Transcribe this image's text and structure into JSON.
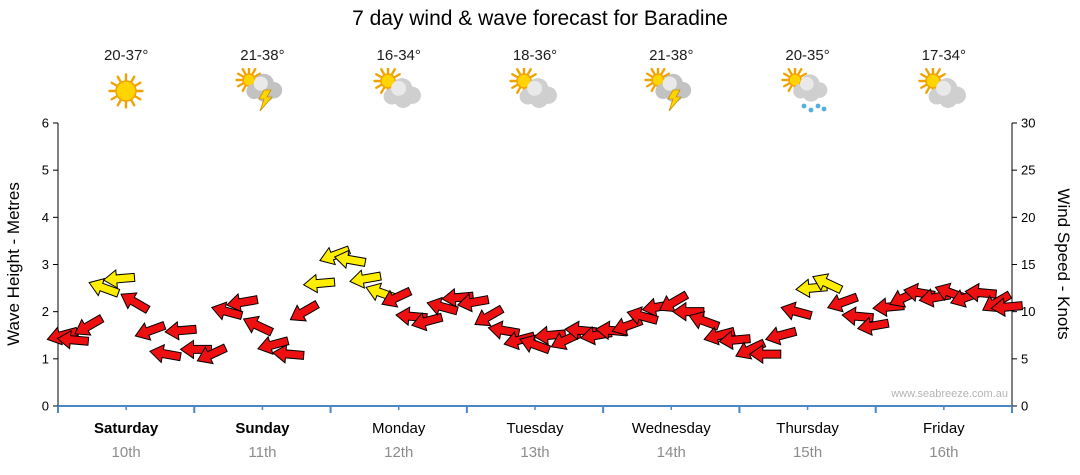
{
  "chart_data": {
    "type": "wind-arrow-timeseries",
    "title": "7 day wind & wave forecast for Baradine",
    "y_left": {
      "label": "Wave Height - Metres",
      "min": 0,
      "max": 6,
      "ticks": [
        0,
        1,
        2,
        3,
        4,
        5,
        6
      ]
    },
    "y_right": {
      "label": "Wind Speed - Knots",
      "min": 0,
      "max": 30,
      "ticks": [
        0,
        5,
        10,
        15,
        20,
        25,
        30
      ]
    },
    "grid": false,
    "legend": "none",
    "days": [
      {
        "name": "Saturday",
        "date": "10th",
        "temp": "20-37°",
        "icon": "sunny",
        "bold": true
      },
      {
        "name": "Sunday",
        "date": "11th",
        "temp": "21-38°",
        "icon": "thunderstorm",
        "bold": true
      },
      {
        "name": "Monday",
        "date": "12th",
        "temp": "16-34°",
        "icon": "partly-cloudy",
        "bold": false
      },
      {
        "name": "Tuesday",
        "date": "13th",
        "temp": "18-36°",
        "icon": "partly-cloudy",
        "bold": false
      },
      {
        "name": "Wednesday",
        "date": "14th",
        "temp": "21-38°",
        "icon": "thunderstorm",
        "bold": false
      },
      {
        "name": "Thursday",
        "date": "15th",
        "temp": "20-35°",
        "icon": "rain-showers",
        "bold": false
      },
      {
        "name": "Friday",
        "date": "16th",
        "temp": "17-34°",
        "icon": "partly-cloudy",
        "bold": false
      }
    ],
    "wind_points_format": [
      "t_fraction_of_week",
      "knots",
      "direction_deg",
      "color r|y"
    ],
    "wind_points": [
      [
        0.005,
        7.5,
        165,
        "r"
      ],
      [
        0.0161,
        7,
        185,
        "r"
      ],
      [
        0.0323,
        8.5,
        150,
        "r"
      ],
      [
        0.0484,
        12.5,
        200,
        "y"
      ],
      [
        0.0645,
        13.5,
        175,
        "y"
      ],
      [
        0.0806,
        11,
        210,
        "r"
      ],
      [
        0.0968,
        8,
        160,
        "r"
      ],
      [
        0.1129,
        5.5,
        190,
        "r"
      ],
      [
        0.129,
        8,
        175,
        "r"
      ],
      [
        0.1452,
        6,
        180,
        "r"
      ],
      [
        0.1613,
        5.5,
        155,
        "r"
      ],
      [
        0.1774,
        10,
        195,
        "r"
      ],
      [
        0.1935,
        11,
        170,
        "r"
      ],
      [
        0.2097,
        8.5,
        205,
        "r"
      ],
      [
        0.2258,
        6.5,
        165,
        "r"
      ],
      [
        0.2419,
        5.5,
        185,
        "r"
      ],
      [
        0.2581,
        10,
        150,
        "r"
      ],
      [
        0.2742,
        13,
        175,
        "y"
      ],
      [
        0.2903,
        16,
        160,
        "y"
      ],
      [
        0.3065,
        15.5,
        190,
        "y"
      ],
      [
        0.3226,
        13.5,
        170,
        "y"
      ],
      [
        0.3387,
        12,
        200,
        "y"
      ],
      [
        0.3548,
        11.5,
        155,
        "r"
      ],
      [
        0.371,
        9.5,
        185,
        "r"
      ],
      [
        0.3871,
        9,
        165,
        "r"
      ],
      [
        0.4032,
        10.5,
        195,
        "r"
      ],
      [
        0.4194,
        11.5,
        175,
        "r"
      ],
      [
        0.4355,
        11,
        170,
        "r"
      ],
      [
        0.4516,
        9.5,
        150,
        "r"
      ],
      [
        0.4677,
        8,
        190,
        "r"
      ],
      [
        0.4839,
        7,
        165,
        "r"
      ],
      [
        0.5,
        6.5,
        200,
        "r"
      ],
      [
        0.5161,
        7.5,
        175,
        "r"
      ],
      [
        0.5323,
        7,
        155,
        "r"
      ],
      [
        0.5484,
        8,
        185,
        "r"
      ],
      [
        0.5645,
        7.5,
        170,
        "r"
      ],
      [
        0.5806,
        8,
        185,
        "r"
      ],
      [
        0.5968,
        8.5,
        160,
        "r"
      ],
      [
        0.6129,
        9.5,
        195,
        "r"
      ],
      [
        0.629,
        10.5,
        170,
        "r"
      ],
      [
        0.6452,
        11,
        150,
        "r"
      ],
      [
        0.6613,
        10,
        180,
        "r"
      ],
      [
        0.6774,
        9,
        200,
        "r"
      ],
      [
        0.6935,
        7.5,
        165,
        "r"
      ],
      [
        0.7097,
        7,
        175,
        "r"
      ],
      [
        0.7258,
        6,
        155,
        "r"
      ],
      [
        0.7419,
        5.5,
        180,
        "r"
      ],
      [
        0.7581,
        7.5,
        165,
        "r"
      ],
      [
        0.7742,
        10,
        195,
        "r"
      ],
      [
        0.7903,
        12.5,
        175,
        "y"
      ],
      [
        0.8065,
        13,
        205,
        "y"
      ],
      [
        0.8226,
        11,
        160,
        "r"
      ],
      [
        0.8387,
        9.5,
        185,
        "r"
      ],
      [
        0.8548,
        8.5,
        170,
        "r"
      ],
      [
        0.871,
        10.5,
        175,
        "r"
      ],
      [
        0.8871,
        11.5,
        155,
        "r"
      ],
      [
        0.9032,
        12,
        190,
        "r"
      ],
      [
        0.9194,
        11.5,
        170,
        "r"
      ],
      [
        0.9355,
        12,
        200,
        "r"
      ],
      [
        0.9516,
        11.5,
        160,
        "r"
      ],
      [
        0.9677,
        12,
        185,
        "r"
      ],
      [
        0.9839,
        11,
        150,
        "r"
      ],
      [
        0.995,
        10.5,
        175,
        "r"
      ]
    ],
    "colors": {
      "red": "#ee1010",
      "yellow": "#ffee00",
      "axis": "#000000",
      "x_axis": "#4a86c8",
      "date_text": "#8c8c8c",
      "watermark_text": "#b4b4b4"
    },
    "watermark": "www.seabreeze.com.au"
  }
}
